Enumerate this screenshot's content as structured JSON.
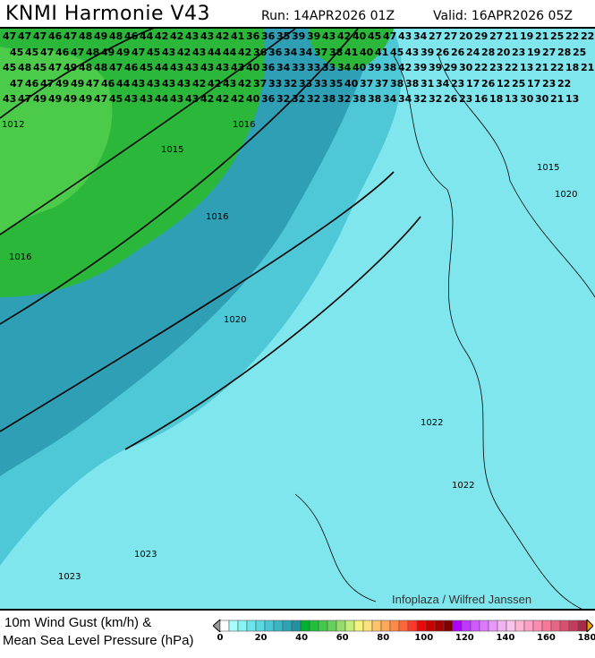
{
  "header": {
    "title": "KNMI Harmonie V43",
    "run": "Run: 14APR2026 01Z",
    "valid": "Valid: 16APR2026 05Z"
  },
  "map": {
    "field": "10m wind gust",
    "colors": {
      "green": "#2bb83a",
      "light_green": "#4ccb4a",
      "teal": "#2e9fb5",
      "mid_cyan": "#4ec8d6",
      "light_cyan": "#7fe6ee"
    },
    "value_rows": [
      "47 47 47 46 47 48 49 48 46 44 42 42 43 43 42 41 36 36 35 39 39 43 42 40 45 47 43 34 27 27 20 29 27 21 19 21 25 22 22",
      "45 45 47 46 47 48 49 49 47 45 43 42 43 44 44 42 36 36 34 34 37 38 41 40 41 45 43 39 26 26 24 28 20 23 19 27 28 25",
      "45 48 45 47 49 48 48 47 46 45 44 43 43 43 43 43 40 36 34 33 33 33 34 40 39 38 42 39 39 29 30 22 23 22 13 21 22 18 21",
      "47 46 47 49 49 47 46 44 43 43 43 43 42 42 43 42 37 33 32 33 33 35 40 37 37 38 38 31 34 23 17 26 12 25 17 23 22",
      "43 47 49 49 49 49 47 45 43 43 44 43 43 42 42 42 40 36 32 32 32 38 32 38 38 34 34 32 32 26 23 16 18 13 30 30 21 13"
    ],
    "isobar_labels": [
      "1012",
      "1015",
      "1015",
      "1016",
      "1016",
      "1016",
      "1020",
      "1020",
      "1022",
      "1022",
      "1023",
      "1023"
    ],
    "credit": "Infoplaza / Wilfred Janssen"
  },
  "legend": {
    "line1": "10m Wind Gust (km/h) &",
    "line2": "Mean Sea Level Pressure (hPa)",
    "ticks": [
      "0",
      "20",
      "40",
      "60",
      "80",
      "100",
      "120",
      "140",
      "160",
      "180"
    ],
    "range": [
      0,
      180
    ],
    "colors": [
      "#ffffff",
      "#a8ffff",
      "#88f4f4",
      "#6ae6ea",
      "#58d8e0",
      "#48c8d4",
      "#38b6c4",
      "#2ca4b4",
      "#2290a0",
      "#00b030",
      "#22bf3a",
      "#44c84c",
      "#66d05c",
      "#96dc6a",
      "#c4ee7c",
      "#f4f47c",
      "#ffe27c",
      "#ffc46a",
      "#ffa858",
      "#ff8a48",
      "#ff6638",
      "#ff3a2a",
      "#e80a0a",
      "#c80000",
      "#a40000",
      "#800000",
      "#b000ff",
      "#c038ff",
      "#d058ff",
      "#dc78ff",
      "#e898f8",
      "#f0b4f0",
      "#f8c4ec",
      "#ffb4d4",
      "#ffa0c4",
      "#ff8cb0",
      "#f87898",
      "#e86484",
      "#d85070",
      "#c43c5c",
      "#a42c48"
    ]
  }
}
